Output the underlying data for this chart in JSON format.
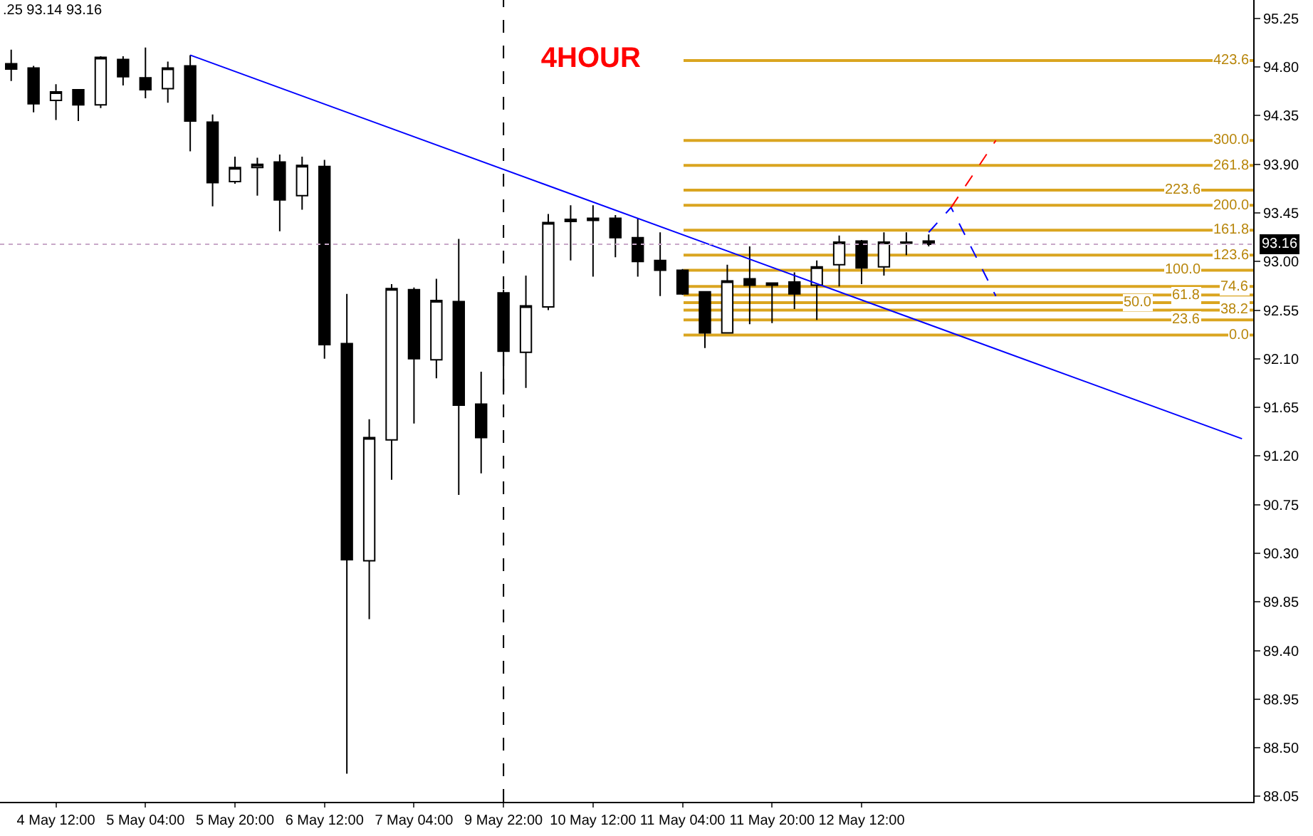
{
  "chart_data": {
    "type": "candlestick",
    "title": "4HOUR",
    "annotations": [
      ".25 93.14 93.16",
      {
        "text": "0.0",
        "y": 92.32
      },
      {
        "text": "23.6",
        "y": 92.46
      },
      {
        "text": "38.2",
        "y": 92.55
      },
      {
        "text": "50.0",
        "y": 92.62
      },
      {
        "text": "61.8",
        "y": 92.69
      },
      {
        "text": "74.6",
        "y": 92.77
      },
      {
        "text": "100.0",
        "y": 92.92
      },
      {
        "text": "123.6",
        "y": 93.06
      },
      {
        "text": "161.8",
        "y": 93.29
      },
      {
        "text": "200.0",
        "y": 93.52
      },
      {
        "text": "223.6",
        "y": 93.66
      },
      {
        "text": "261.8",
        "y": 93.89
      },
      {
        "text": "300.0",
        "y": 94.12
      },
      {
        "text": "423.6",
        "y": 94.86
      }
    ],
    "categories": [
      null,
      null,
      "4 May 12:00",
      null,
      null,
      null,
      "5 May 04:00",
      null,
      null,
      null,
      "5 May 20:00",
      null,
      null,
      null,
      "6 May 12:00",
      null,
      null,
      null,
      "7 May 04:00",
      null,
      null,
      null,
      "9 May 22:00",
      null,
      null,
      null,
      "10 May 12:00",
      null,
      null,
      null,
      "11 May 04:00",
      null,
      null,
      null,
      "11 May 20:00",
      null,
      null,
      null,
      "12 May 12:00",
      null,
      null,
      null,
      null,
      null,
      null,
      null,
      null,
      null,
      null,
      null,
      null,
      null,
      null,
      null,
      null,
      null
    ],
    "color": "#000000",
    "ohlc": [
      [
        94.83,
        94.96,
        94.67,
        94.78
      ],
      [
        94.79,
        94.81,
        94.38,
        94.46
      ],
      [
        94.49,
        94.64,
        94.31,
        94.57
      ],
      [
        94.59,
        94.59,
        94.3,
        94.45
      ],
      [
        94.45,
        94.9,
        94.42,
        94.89
      ],
      [
        94.87,
        94.9,
        94.63,
        94.71
      ],
      [
        94.7,
        94.98,
        94.51,
        94.59
      ],
      [
        94.6,
        94.85,
        94.47,
        94.79
      ],
      [
        94.81,
        94.91,
        94.02,
        94.3
      ],
      [
        94.29,
        94.36,
        93.51,
        93.73
      ],
      [
        93.74,
        93.97,
        93.72,
        93.87
      ],
      [
        93.87,
        93.96,
        93.61,
        93.9
      ],
      [
        93.92,
        93.99,
        93.28,
        93.57
      ],
      [
        93.61,
        93.97,
        93.48,
        93.89
      ],
      [
        93.88,
        93.94,
        92.1,
        92.23
      ],
      [
        92.24,
        92.7,
        88.26,
        90.24
      ],
      [
        90.23,
        91.54,
        89.69,
        91.37
      ],
      [
        91.35,
        92.79,
        90.98,
        92.75
      ],
      [
        92.74,
        92.76,
        91.5,
        92.1
      ],
      [
        92.09,
        92.84,
        91.92,
        92.64
      ],
      [
        92.63,
        93.21,
        90.84,
        91.67
      ],
      [
        91.68,
        91.98,
        91.04,
        91.37
      ],
      [
        92.71,
        92.74,
        91.77,
        92.17
      ],
      [
        92.16,
        92.87,
        91.83,
        92.59
      ],
      [
        92.58,
        93.44,
        92.55,
        93.36
      ],
      [
        93.39,
        93.52,
        93.01,
        93.37
      ],
      [
        93.4,
        93.52,
        92.86,
        93.38
      ],
      [
        93.4,
        93.43,
        93.04,
        93.22
      ],
      [
        93.22,
        93.4,
        92.86,
        93.0
      ],
      [
        93.01,
        93.27,
        92.68,
        92.92
      ],
      [
        92.92,
        92.93,
        92.69,
        92.7
      ],
      [
        92.72,
        92.72,
        92.2,
        92.34
      ],
      [
        92.34,
        92.97,
        92.34,
        92.82
      ],
      [
        92.84,
        93.14,
        92.42,
        92.78
      ],
      [
        92.78,
        92.8,
        92.43,
        92.8
      ],
      [
        92.81,
        92.9,
        92.56,
        92.7
      ],
      [
        92.78,
        93.01,
        92.46,
        92.95
      ],
      [
        92.97,
        93.24,
        92.77,
        93.18
      ],
      [
        93.19,
        93.2,
        92.79,
        92.94
      ],
      [
        92.95,
        93.27,
        92.87,
        93.18
      ],
      [
        93.17,
        93.27,
        93.06,
        93.18
      ],
      [
        93.19,
        93.25,
        93.14,
        93.16
      ],
      null,
      null,
      null,
      null,
      null,
      null,
      null,
      null,
      null,
      null,
      null,
      null,
      null,
      null
    ],
    "series": [
      {
        "type": "line",
        "color": "#0000ff",
        "values": [
          null,
          null,
          null,
          null,
          null,
          null,
          null,
          null,
          94.91,
          null,
          null,
          null,
          null,
          null,
          null,
          null,
          null,
          null,
          null,
          null,
          null,
          null,
          null,
          null,
          null,
          null,
          null,
          null,
          null,
          null,
          null,
          null,
          null,
          null,
          null,
          null,
          null,
          null,
          null,
          null,
          null,
          null,
          null,
          null,
          null,
          null,
          null,
          null,
          null,
          null,
          null,
          null,
          null,
          null,
          null,
          91.36
        ]
      },
      {
        "type": "line",
        "color": "#0000ff",
        "line_style": "dashed",
        "values": [
          null,
          null,
          null,
          null,
          null,
          null,
          null,
          null,
          null,
          null,
          null,
          null,
          null,
          null,
          null,
          null,
          null,
          null,
          null,
          null,
          null,
          null,
          null,
          null,
          null,
          null,
          null,
          null,
          null,
          null,
          null,
          null,
          null,
          null,
          null,
          null,
          null,
          null,
          null,
          null,
          null,
          93.27,
          93.5,
          null,
          92.68,
          null,
          null,
          null,
          null,
          null,
          null,
          null,
          null,
          null,
          null,
          null
        ]
      },
      {
        "type": "line",
        "color": "#ff0000",
        "line_style": "dashed",
        "values": [
          null,
          null,
          null,
          null,
          null,
          null,
          null,
          null,
          null,
          null,
          null,
          null,
          null,
          null,
          null,
          null,
          null,
          null,
          null,
          null,
          null,
          null,
          null,
          null,
          null,
          null,
          null,
          null,
          null,
          null,
          null,
          null,
          null,
          null,
          null,
          null,
          null,
          null,
          null,
          null,
          null,
          null,
          93.5,
          null,
          94.12,
          null,
          null,
          null,
          null,
          null,
          null,
          null,
          null,
          null,
          null,
          null
        ]
      }
    ],
    "ylim": [
      88.0,
      95.42
    ],
    "yticks": [
      {
        "value": 95.25,
        "label": "95.25"
      },
      {
        "value": 94.8,
        "label": "94.80"
      },
      {
        "value": 94.35,
        "label": "94.35"
      },
      {
        "value": 93.9,
        "label": "93.90"
      },
      {
        "value": 93.45,
        "label": "93.45"
      },
      {
        "value": 93.0,
        "label": "93.00"
      },
      {
        "value": 92.55,
        "label": "92.55"
      },
      {
        "value": 92.1,
        "label": "92.10"
      },
      {
        "value": 91.65,
        "label": "91.65"
      },
      {
        "value": 91.2,
        "label": "91.20"
      },
      {
        "value": 90.75,
        "label": "90.75"
      },
      {
        "value": 90.3,
        "label": "90.30"
      },
      {
        "value": 89.85,
        "label": "89.85"
      },
      {
        "value": 89.4,
        "label": "89.40"
      },
      {
        "value": 88.95,
        "label": "88.95"
      },
      {
        "value": 88.5,
        "label": "88.50"
      },
      {
        "value": 88.05,
        "label": "88.05"
      }
    ],
    "ref_lines": [
      {
        "axis": "x",
        "value": "9 May 22:00",
        "color": "#000000",
        "line_style": "dashed"
      },
      {
        "axis": "y",
        "value": 93.16,
        "label": "93.16",
        "color": "#c8a8c8",
        "line_style": "dotted"
      },
      {
        "axis": "y",
        "value": 92.32,
        "color": "#daa520"
      },
      {
        "axis": "y",
        "value": 92.46,
        "color": "#daa520"
      },
      {
        "axis": "y",
        "value": 92.55,
        "color": "#daa520"
      },
      {
        "axis": "y",
        "value": 92.62,
        "color": "#daa520"
      },
      {
        "axis": "y",
        "value": 92.69,
        "color": "#daa520"
      },
      {
        "axis": "y",
        "value": 92.77,
        "color": "#daa520"
      },
      {
        "axis": "y",
        "value": 92.92,
        "color": "#daa520"
      },
      {
        "axis": "y",
        "value": 93.06,
        "color": "#daa520"
      },
      {
        "axis": "y",
        "value": 93.29,
        "color": "#daa520"
      },
      {
        "axis": "y",
        "value": 93.52,
        "color": "#daa520"
      },
      {
        "axis": "y",
        "value": 93.66,
        "color": "#daa520"
      },
      {
        "axis": "y",
        "value": 93.89,
        "color": "#daa520"
      },
      {
        "axis": "y",
        "value": 94.12,
        "color": "#daa520"
      },
      {
        "axis": "y",
        "value": 94.86,
        "color": "#daa520"
      }
    ],
    "grid": false
  }
}
